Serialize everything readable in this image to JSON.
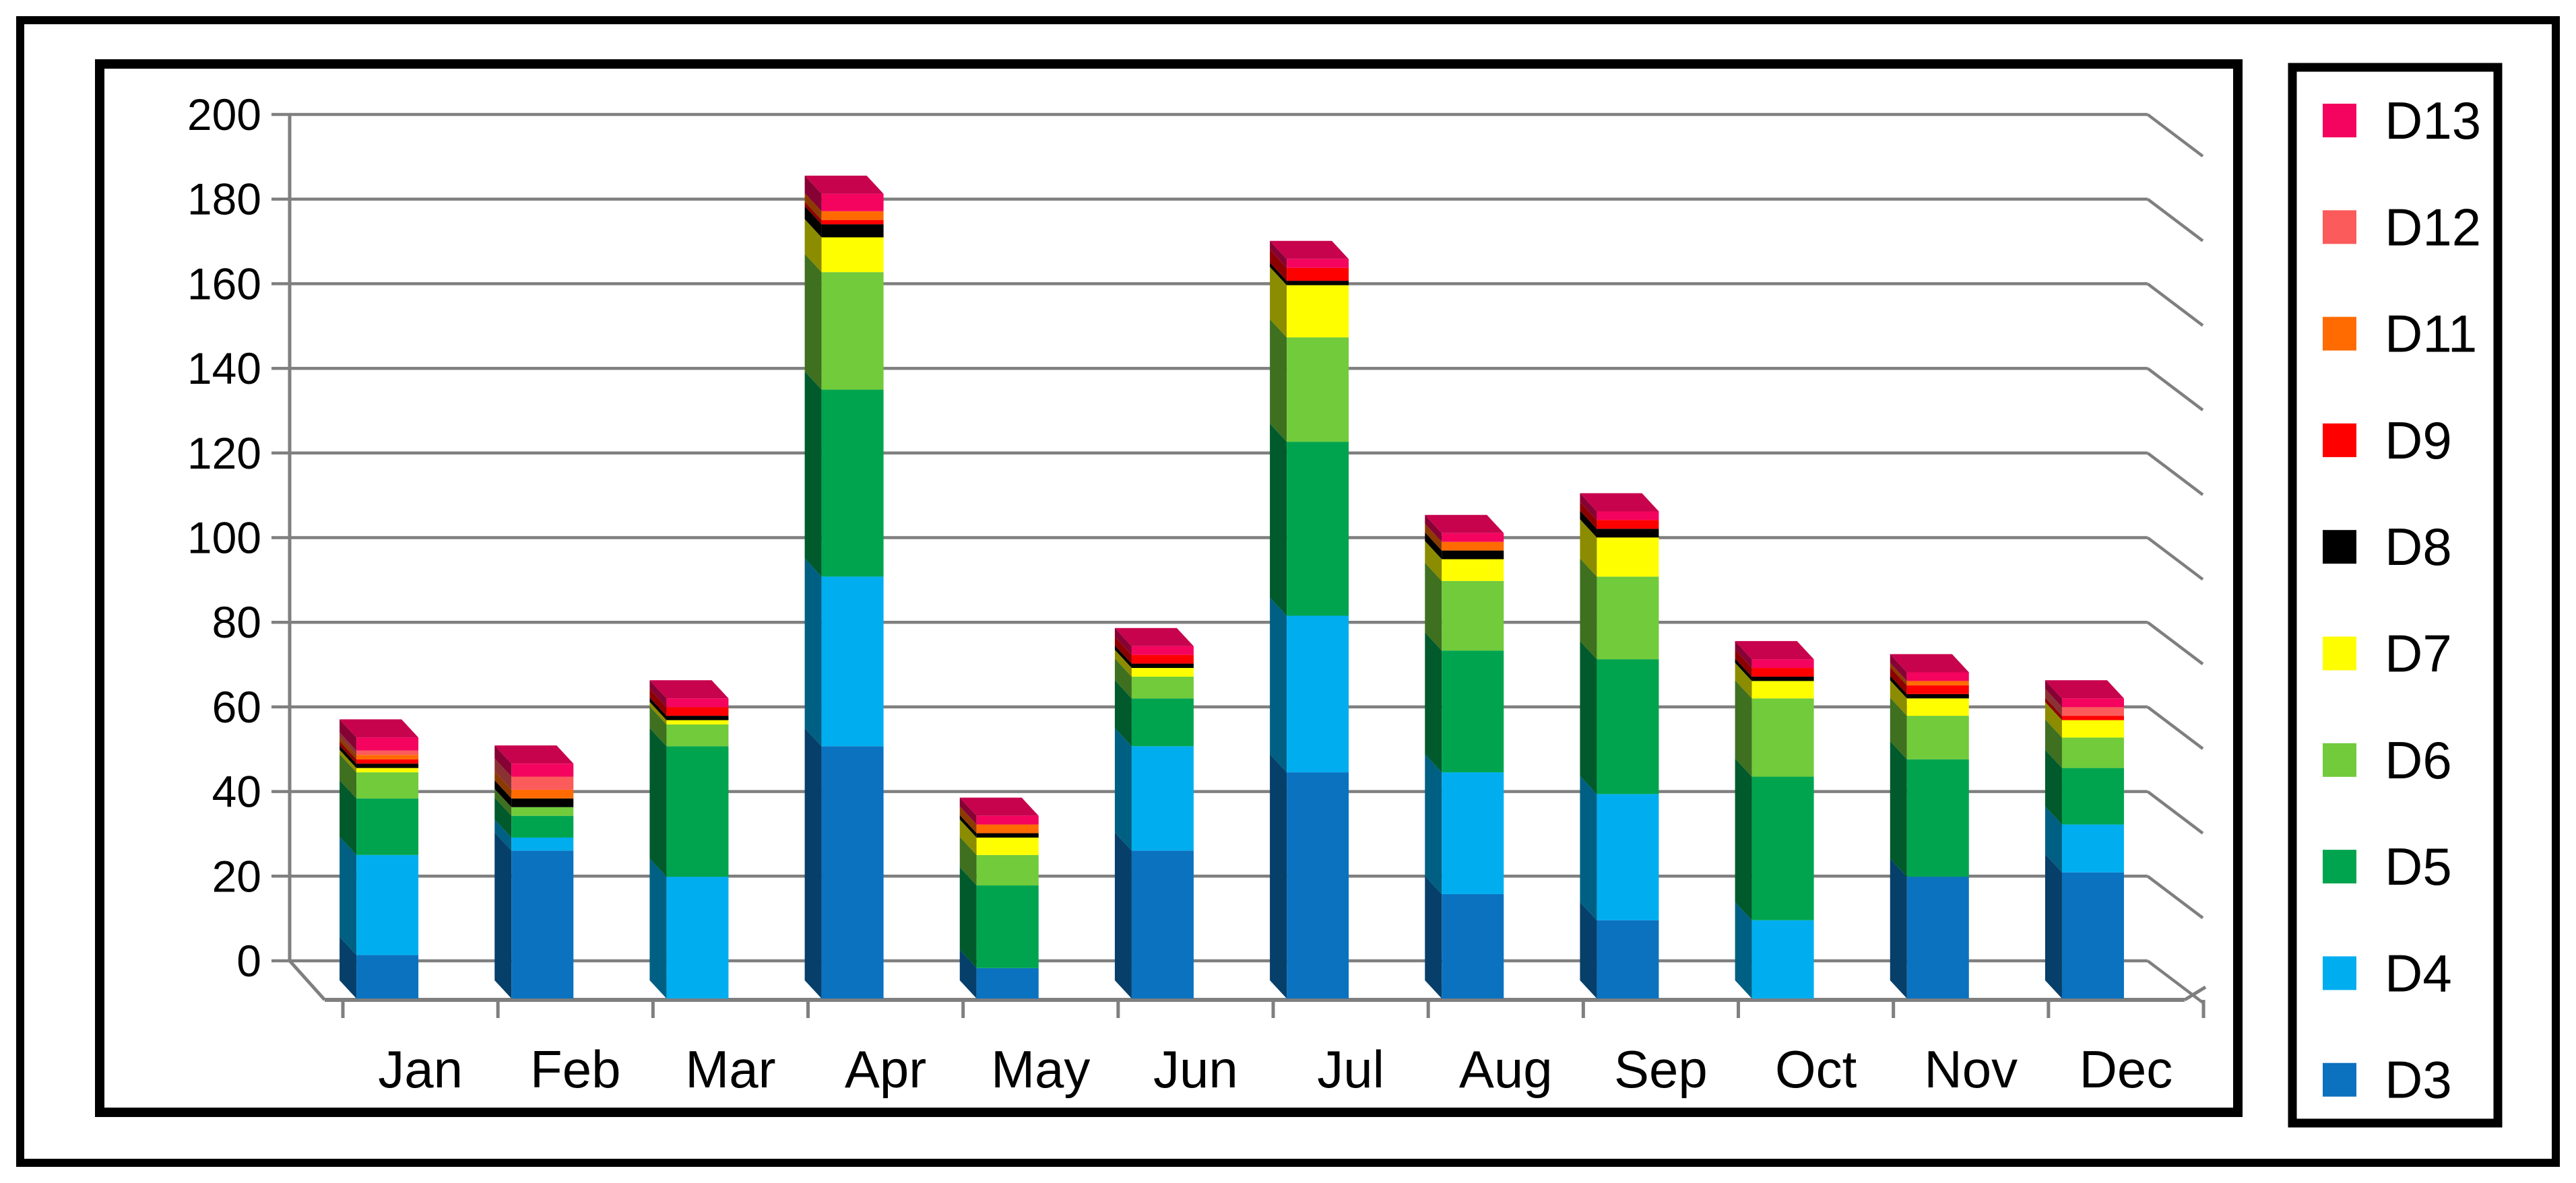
{
  "figure": {
    "kind": "3d-stacked-column-chart",
    "background": "#ffffff",
    "outer_frame_color": "#000000",
    "chart_border_color": "#000000",
    "legend_border_color": "#000000"
  },
  "chart_data": {
    "type": "bar",
    "stacked": true,
    "effect": "3d",
    "title": "",
    "xlabel": "",
    "ylabel": "",
    "ylim": [
      0,
      200
    ],
    "ytick_step": 20,
    "ytick_labels": [
      "0",
      "20",
      "40",
      "60",
      "80",
      "100",
      "120",
      "140",
      "160",
      "180",
      "200"
    ],
    "grid": true,
    "gridline_color": "#7F7F7F",
    "axis_line_color": "#7F7F7F",
    "legend_position": "right",
    "categories": [
      "Jan",
      "Feb",
      "Mar",
      "Apr",
      "May",
      "Jun",
      "Jul",
      "Aug",
      "Sep",
      "Oct",
      "Nov",
      "Dec"
    ],
    "series": [
      {
        "name": "D3",
        "color": "#0B72BF",
        "values": [
          10,
          34,
          0,
          58,
          7,
          34,
          52,
          24,
          18,
          0,
          28,
          29
        ]
      },
      {
        "name": "D4",
        "color": "#00AEEF",
        "values": [
          23,
          3,
          28,
          39,
          0,
          24,
          36,
          28,
          29,
          18,
          0,
          11
        ]
      },
      {
        "name": "D5",
        "color": "#00A44E",
        "values": [
          13,
          5,
          30,
          43,
          19,
          11,
          40,
          28,
          31,
          33,
          27,
          13
        ]
      },
      {
        "name": "D6",
        "color": "#71CB3B",
        "values": [
          6,
          2,
          5,
          27,
          7,
          5,
          24,
          16,
          19,
          18,
          10,
          7
        ]
      },
      {
        "name": "D7",
        "color": "#FEFE00",
        "values": [
          1,
          0,
          1,
          8,
          4,
          2,
          12,
          5,
          9,
          4,
          4,
          4
        ]
      },
      {
        "name": "D8",
        "color": "#000000",
        "values": [
          1,
          2,
          1,
          3,
          1,
          1,
          1,
          2,
          2,
          1,
          1,
          0
        ]
      },
      {
        "name": "D9",
        "color": "#FE0000",
        "values": [
          1,
          0,
          2,
          1,
          0,
          2,
          3,
          0,
          2,
          2,
          2,
          1
        ]
      },
      {
        "name": "D11",
        "color": "#FF6B00",
        "values": [
          1,
          2,
          0,
          2,
          2,
          0,
          0,
          2,
          0,
          0,
          1,
          0
        ]
      },
      {
        "name": "D12",
        "color": "#FB5B5B",
        "values": [
          1,
          3,
          0,
          0,
          0,
          0,
          0,
          0,
          0,
          0,
          0,
          2
        ]
      },
      {
        "name": "D13",
        "color": "#F4045E",
        "values": [
          3,
          3,
          2,
          4,
          2,
          2,
          2,
          2,
          2,
          2,
          2,
          2
        ]
      }
    ],
    "legend_order_top_to_bottom": [
      "D13",
      "D12",
      "D11",
      "D9",
      "D8",
      "D7",
      "D6",
      "D5",
      "D4",
      "D3"
    ]
  }
}
